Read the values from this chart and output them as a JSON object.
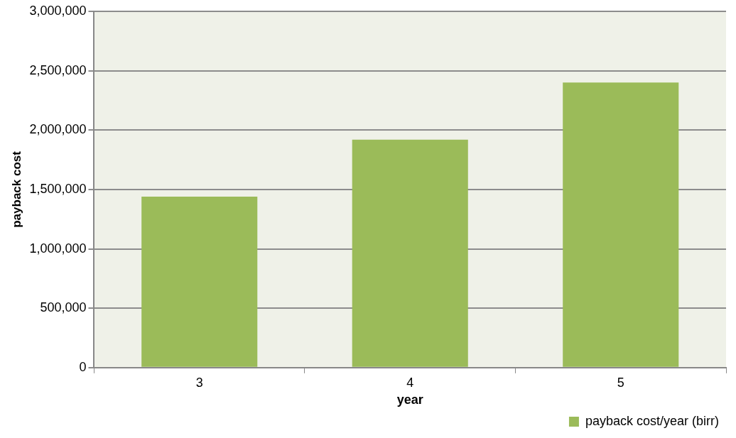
{
  "chart_data": {
    "type": "bar",
    "xlabel": "year",
    "ylabel": "payback cost",
    "categories": [
      "3",
      "4",
      "5"
    ],
    "series": [
      {
        "name": "payback cost/year (birr)",
        "color": "#9bbb59",
        "values": [
          1440000,
          1920000,
          2400000
        ]
      }
    ],
    "ylim": [
      0,
      3000000
    ],
    "yticks": [
      0,
      {
        "value": 500000,
        "label": "500,000"
      },
      {
        "value": 1000000,
        "label": "1,000,000"
      },
      {
        "value": 1500000,
        "label": "1,500,000"
      },
      {
        "value": 2000000,
        "label": "2,000,000"
      },
      {
        "value": 2500000,
        "label": "2,500,000"
      },
      {
        "value": 3000000,
        "label": "3,000,000"
      }
    ],
    "grid": "y",
    "legend": "bottom right"
  }
}
